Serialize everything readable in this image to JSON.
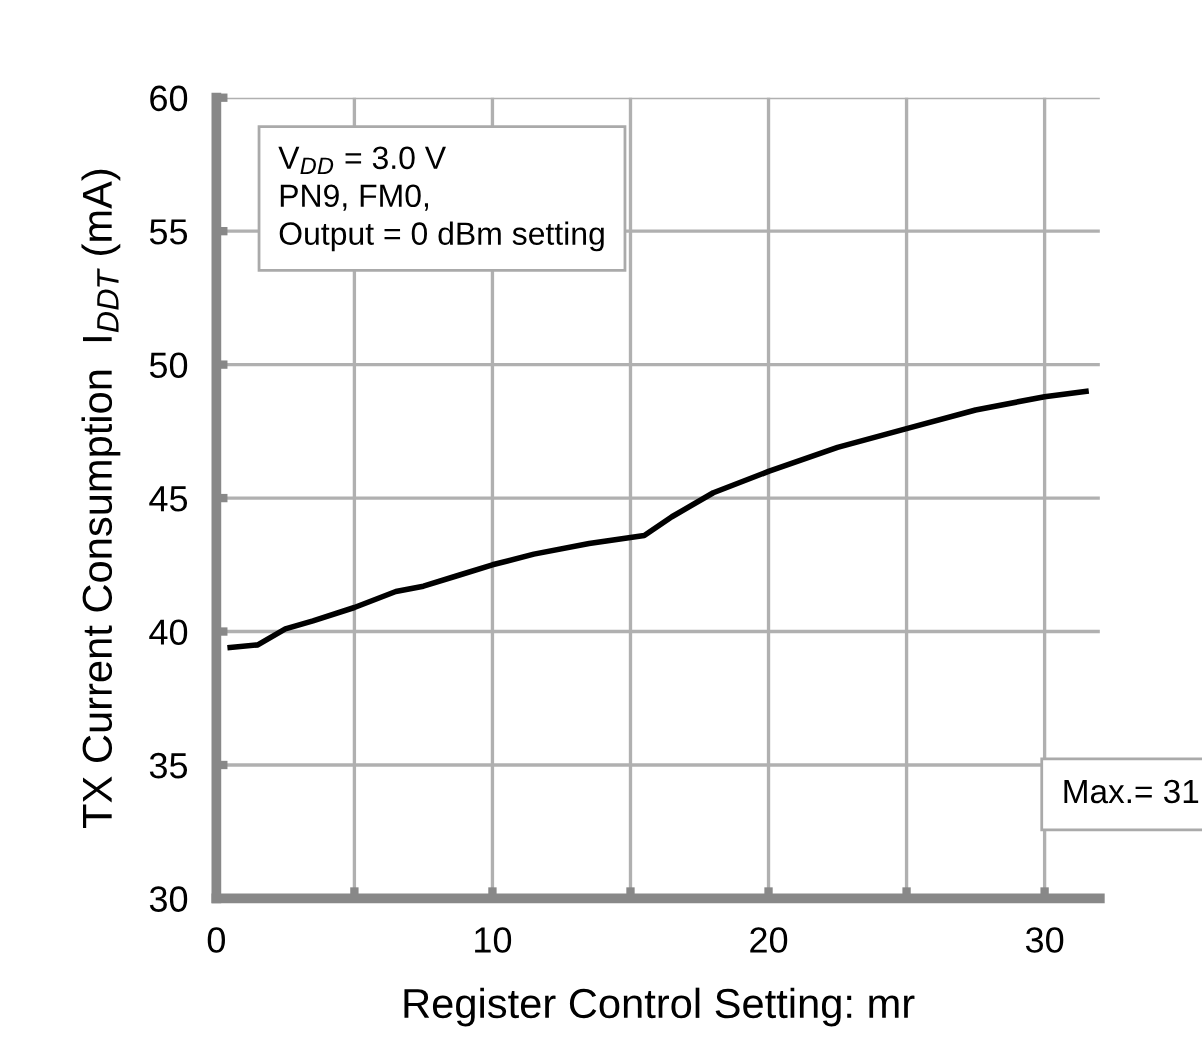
{
  "chart_data": {
    "type": "line",
    "xlabel": "Register Control Setting: mr",
    "ylabel": "TX Current Consumption  I$_{DDT}$ (mA)",
    "series": [
      {
        "color": "#000000",
        "x": [
          0.5,
          1.5,
          2.5,
          3.5,
          5,
          6.5,
          7.5,
          8.75,
          10,
          11.5,
          13.5,
          15.5,
          16.5,
          18,
          20,
          22.5,
          25,
          27.5,
          30,
          31.5
        ],
        "values": [
          39.4,
          39.5,
          40.1,
          40.4,
          40.9,
          41.5,
          41.7,
          42.1,
          42.5,
          42.9,
          43.3,
          43.6,
          44.3,
          45.2,
          46.0,
          46.9,
          47.6,
          48.3,
          48.8,
          49.0
        ]
      }
    ],
    "xlim": [
      0,
      32
    ],
    "xticks": [
      0,
      {
        "value": 5,
        "label": null
      },
      10,
      {
        "value": 15,
        "label": null
      },
      20,
      {
        "value": 25,
        "label": null
      },
      30
    ],
    "ylim": [
      30,
      60
    ],
    "yticks": [
      30,
      35,
      40,
      45,
      50,
      55,
      60
    ],
    "grid": true,
    "marker": "none",
    "line_style": "solid",
    "annotations": [
      "V$_{DD}$ = 3.0 V\nPN9, FM0,\nOutput = 0 dBm setting",
      "Max.= 31"
    ]
  }
}
